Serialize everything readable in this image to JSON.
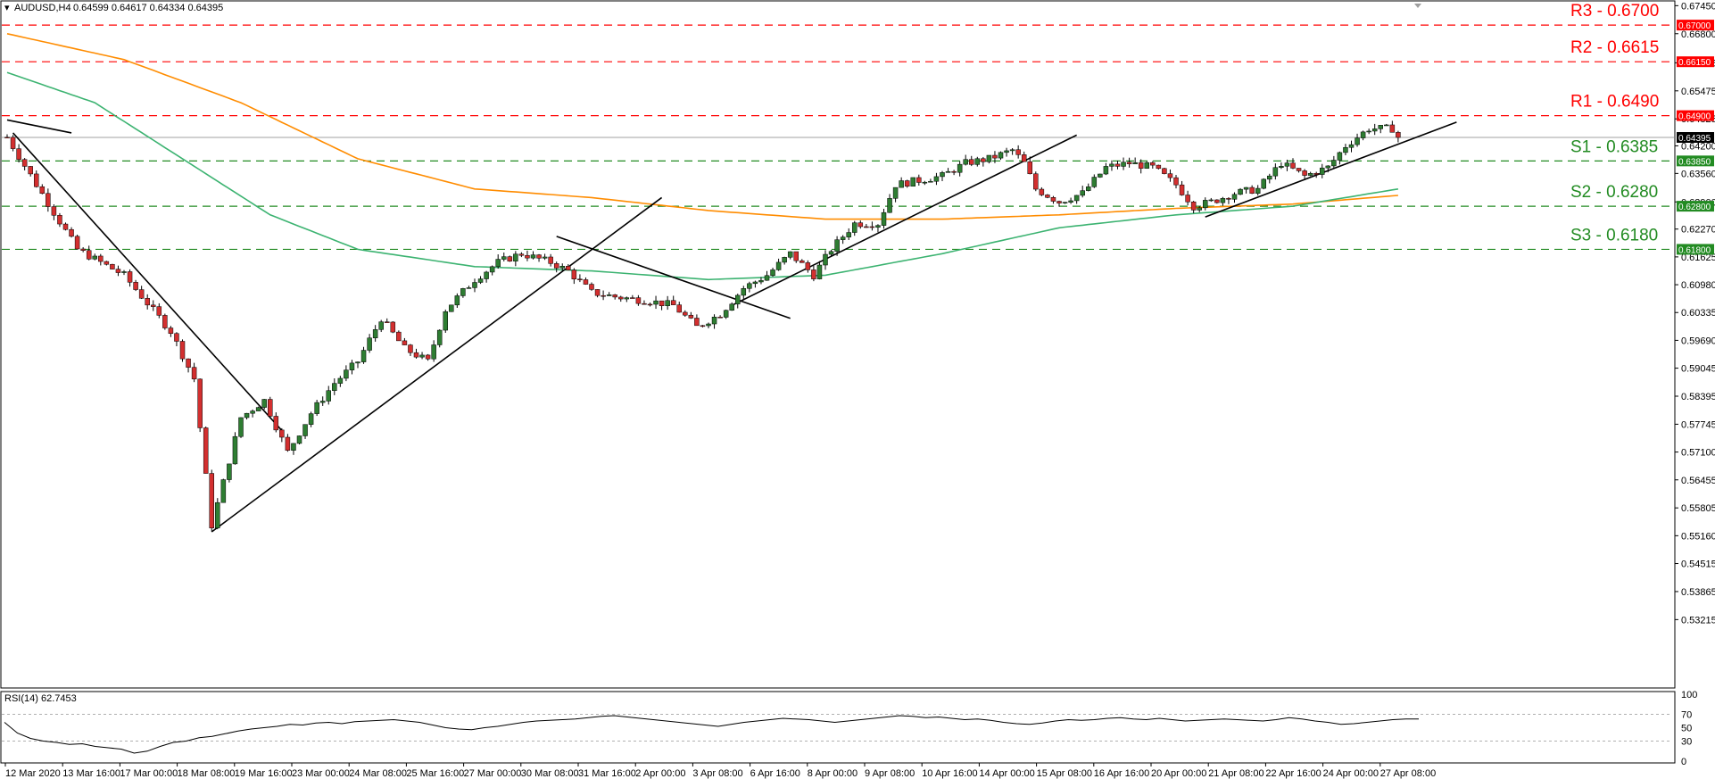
{
  "header": {
    "symbol": "AUDUSD,H4",
    "ohlc": "0.64599 0.64617 0.64334 0.64395"
  },
  "rsi_header": "RSI(14) 62.7453",
  "colors": {
    "bull": "#2e7d32",
    "bear": "#d32f2f",
    "ma_orange": "#ff8c00",
    "ma_green": "#3cb371",
    "resistance": "#ff0000",
    "support": "#228b22"
  },
  "levels": [
    {
      "label": "R3 - 0.6700",
      "value": 0.67,
      "tag": "0.67000",
      "kind": "resistance"
    },
    {
      "label": "R2 - 0.6615",
      "value": 0.6615,
      "tag": "0.66150",
      "kind": "resistance"
    },
    {
      "label": "R1 - 0.6490",
      "value": 0.649,
      "tag": "0.64900",
      "kind": "resistance"
    },
    {
      "label": "S1 - 0.6385",
      "value": 0.6385,
      "tag": "0.63850",
      "kind": "support"
    },
    {
      "label": "S2 - 0.6280",
      "value": 0.628,
      "tag": "0.62800",
      "kind": "support"
    },
    {
      "label": "S3 - 0.6180",
      "value": 0.618,
      "tag": "0.61800",
      "kind": "support"
    }
  ],
  "current_price": {
    "value": 0.64395,
    "tag": "0.64395"
  },
  "chart_data": {
    "type": "candlestick",
    "ylim": [
      0.5165,
      0.6754
    ],
    "yticks": [
      "0.67450",
      "0.66800",
      "0.66125",
      "0.65475",
      "0.64825",
      "0.64200",
      "0.63560",
      "0.62900",
      "0.62270",
      "0.61625",
      "0.60980",
      "0.60335",
      "0.59690",
      "0.59045",
      "0.58395",
      "0.57745",
      "0.57100",
      "0.56455",
      "0.55805",
      "0.55160",
      "0.54515",
      "0.53865",
      "0.53215"
    ],
    "xticks": [
      "12 Mar 2020",
      "13 Mar 16:00",
      "17 Mar 00:00",
      "18 Mar 08:00",
      "19 Mar 16:00",
      "23 Mar 00:00",
      "24 Mar 08:00",
      "25 Mar 16:00",
      "27 Mar 00:00",
      "30 Mar 08:00",
      "31 Mar 16:00",
      "2 Apr 00:00",
      "3 Apr 08:00",
      "6 Apr 16:00",
      "8 Apr 00:00",
      "9 Apr 08:00",
      "10 Apr 16:00",
      "14 Apr 00:00",
      "15 Apr 08:00",
      "16 Apr 16:00",
      "20 Apr 00:00",
      "21 Apr 08:00",
      "22 Apr 16:00",
      "24 Apr 00:00",
      "27 Apr 08:00"
    ],
    "x_count": 239,
    "anchors": [
      [
        0,
        0.644
      ],
      [
        5,
        0.633
      ],
      [
        12,
        0.618
      ],
      [
        20,
        0.612
      ],
      [
        28,
        0.599
      ],
      [
        32,
        0.588
      ],
      [
        35,
        0.554
      ],
      [
        40,
        0.579
      ],
      [
        44,
        0.583
      ],
      [
        48,
        0.571
      ],
      [
        52,
        0.58
      ],
      [
        56,
        0.587
      ],
      [
        60,
        0.592
      ],
      [
        64,
        0.602
      ],
      [
        68,
        0.595
      ],
      [
        72,
        0.592
      ],
      [
        75,
        0.604
      ],
      [
        80,
        0.611
      ],
      [
        84,
        0.615
      ],
      [
        88,
        0.617
      ],
      [
        93,
        0.615
      ],
      [
        96,
        0.613
      ],
      [
        100,
        0.608
      ],
      [
        104,
        0.607
      ],
      [
        110,
        0.606
      ],
      [
        114,
        0.605
      ],
      [
        118,
        0.6
      ],
      [
        122,
        0.603
      ],
      [
        126,
        0.609
      ],
      [
        130,
        0.612
      ],
      [
        134,
        0.617
      ],
      [
        138,
        0.612
      ],
      [
        141,
        0.618
      ],
      [
        145,
        0.624
      ],
      [
        149,
        0.624
      ],
      [
        152,
        0.633
      ],
      [
        156,
        0.634
      ],
      [
        160,
        0.635
      ],
      [
        164,
        0.638
      ],
      [
        168,
        0.639
      ],
      [
        172,
        0.641
      ],
      [
        174,
        0.638
      ],
      [
        176,
        0.632
      ],
      [
        180,
        0.629
      ],
      [
        184,
        0.631
      ],
      [
        188,
        0.637
      ],
      [
        192,
        0.638
      ],
      [
        196,
        0.637
      ],
      [
        200,
        0.633
      ],
      [
        203,
        0.628
      ],
      [
        206,
        0.629
      ],
      [
        210,
        0.631
      ],
      [
        214,
        0.632
      ],
      [
        218,
        0.638
      ],
      [
        222,
        0.635
      ],
      [
        226,
        0.637
      ],
      [
        229,
        0.642
      ],
      [
        233,
        0.646
      ],
      [
        237,
        0.646
      ],
      [
        238,
        0.644
      ]
    ],
    "ma_orange": [
      [
        0,
        0.668
      ],
      [
        20,
        0.662
      ],
      [
        40,
        0.652
      ],
      [
        60,
        0.639
      ],
      [
        80,
        0.632
      ],
      [
        100,
        0.63
      ],
      [
        120,
        0.627
      ],
      [
        140,
        0.625
      ],
      [
        160,
        0.625
      ],
      [
        180,
        0.626
      ],
      [
        200,
        0.6275
      ],
      [
        220,
        0.6285
      ],
      [
        238,
        0.6305
      ]
    ],
    "ma_green": [
      [
        0,
        0.659
      ],
      [
        15,
        0.652
      ],
      [
        30,
        0.639
      ],
      [
        45,
        0.626
      ],
      [
        60,
        0.618
      ],
      [
        80,
        0.614
      ],
      [
        100,
        0.613
      ],
      [
        120,
        0.611
      ],
      [
        140,
        0.612
      ],
      [
        160,
        0.617
      ],
      [
        180,
        0.623
      ],
      [
        200,
        0.626
      ],
      [
        220,
        0.628
      ],
      [
        238,
        0.632
      ]
    ],
    "trendlines": [
      [
        0,
        0.648,
        11,
        0.645
      ],
      [
        1,
        0.645,
        47,
        0.576
      ],
      [
        35,
        0.5525,
        112,
        0.63
      ],
      [
        94,
        0.621,
        134,
        0.602
      ],
      [
        124,
        0.605,
        183,
        0.6445
      ],
      [
        205,
        0.6255,
        248,
        0.6475
      ]
    ],
    "rsi": {
      "ylim": [
        0,
        100
      ],
      "ticks": [
        100,
        70,
        50,
        30,
        0
      ],
      "values": [
        58,
        42,
        34,
        30,
        28,
        25,
        26,
        22,
        20,
        18,
        12,
        15,
        22,
        28,
        30,
        35,
        37,
        41,
        45,
        48,
        50,
        52,
        55,
        54,
        57,
        58,
        56,
        59,
        60,
        61,
        62,
        60,
        58,
        54,
        50,
        48,
        47,
        50,
        52,
        55,
        58,
        60,
        61,
        62,
        63,
        65,
        67,
        68,
        66,
        64,
        62,
        60,
        58,
        56,
        54,
        52,
        55,
        58,
        60,
        62,
        64,
        63,
        62,
        60,
        58,
        60,
        62,
        64,
        66,
        68,
        67,
        65,
        66,
        64,
        62,
        63,
        61,
        58,
        56,
        55,
        57,
        60,
        62,
        61,
        62,
        64,
        65,
        63,
        62,
        64,
        62,
        60,
        61,
        62,
        63,
        62,
        61,
        60,
        62,
        65,
        63,
        60,
        58,
        55,
        56,
        58,
        60,
        62,
        63,
        63
      ]
    }
  }
}
